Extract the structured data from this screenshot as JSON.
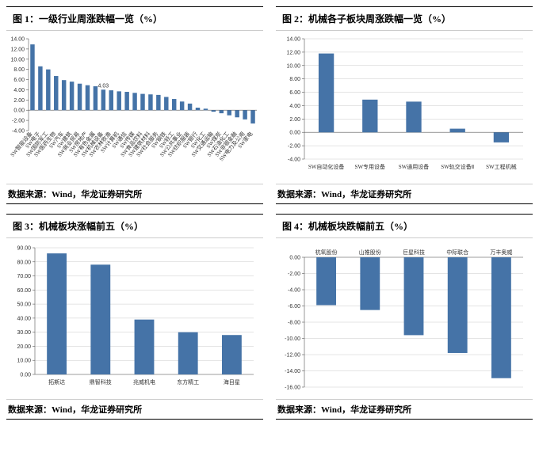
{
  "source_label": "数据来源：Wind，华龙证券研究所",
  "bar_color": "#4573a7",
  "bg_color": "#ffffff",
  "charts": {
    "c1": {
      "title": "图 1：一级行业周涨跌幅一览（%）",
      "type": "bar",
      "ylim": [
        -4,
        14
      ],
      "ytick_step": 2,
      "bar_width": 0.55,
      "annot": {
        "idx": 9,
        "text": "4.03"
      },
      "categories": [
        "SW智能设备",
        "SW电子",
        "SW国防军工",
        "SW医药生物",
        "SW汽车",
        "SW建筑",
        "SW商业贸易",
        "SW房地产",
        "SW有色金属",
        "SW机械设备",
        "SW农林牧渔",
        "SW计算机",
        "SW通信",
        "SW传媒",
        "SW食品饮料",
        "SW建筑材料",
        "SW社会服务",
        "SW钢铁",
        "SW轻工",
        "SW公共事业",
        "SW纺织服装",
        "SW银行",
        "SW化工",
        "SW交通运输",
        "SW煤炭",
        "SW石油化工",
        "SW非银金融",
        "SW电力及公用",
        "SW家电"
      ],
      "values": [
        12.9,
        8.6,
        8.0,
        6.7,
        5.9,
        5.6,
        5.2,
        4.9,
        4.7,
        4.03,
        3.9,
        3.7,
        3.6,
        3.4,
        3.2,
        3.1,
        3.0,
        2.6,
        2.2,
        1.7,
        1.3,
        0.5,
        0.3,
        -0.3,
        -0.6,
        -1.0,
        -1.4,
        -1.8,
        -2.6
      ]
    },
    "c2": {
      "title": "图 2：机械各子板块周涨跌幅一览（%）",
      "type": "bar",
      "ylim": [
        -4,
        14
      ],
      "ytick_step": 2,
      "bar_width": 0.35,
      "categories": [
        "SW自动化设备",
        "SW专用设备",
        "SW通用设备",
        "SW轨交设备Ⅱ",
        "SW工程机械"
      ],
      "values": [
        11.8,
        4.9,
        4.6,
        0.55,
        -1.5
      ]
    },
    "c3": {
      "title": "图 3：机械板块涨幅前五（%）",
      "type": "bar",
      "ylim": [
        0,
        90
      ],
      "ytick_step": 10,
      "bar_width": 0.45,
      "categories": [
        "拓斯达",
        "鼎智科技",
        "兆威机电",
        "东方精工",
        "海目星"
      ],
      "values": [
        86,
        78,
        39,
        30,
        28
      ]
    },
    "c4": {
      "title": "图 4：机械板块跌幅前五（%）",
      "type": "bar",
      "ylim": [
        -16,
        0
      ],
      "ytick_step": 2,
      "bar_width": 0.45,
      "xlabels_top": true,
      "categories": [
        "杭氧股份",
        "山推股份",
        "巨星科技",
        "中际联合",
        "万丰奥威"
      ],
      "values": [
        -5.9,
        -6.5,
        -9.6,
        -11.8,
        -14.9
      ]
    }
  }
}
